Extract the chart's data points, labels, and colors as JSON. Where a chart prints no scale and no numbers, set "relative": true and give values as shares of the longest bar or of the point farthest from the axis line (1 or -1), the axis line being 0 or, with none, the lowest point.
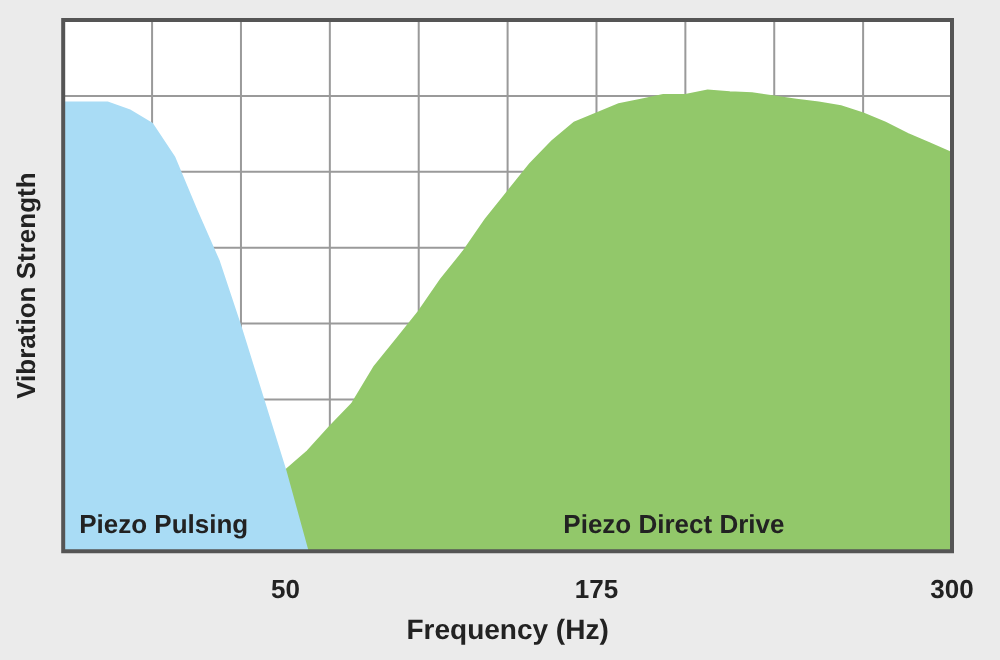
{
  "chart_data": {
    "type": "area",
    "xlabel": "Frequency (Hz)",
    "ylabel": "Vibration Strength",
    "relative": true,
    "grid": true,
    "categories": [
      null,
      null,
      null,
      null,
      null,
      null,
      null,
      null,
      null,
      null,
      "50",
      null,
      null,
      null,
      null,
      null,
      null,
      null,
      null,
      null,
      null,
      null,
      null,
      null,
      "175",
      null,
      null,
      null,
      null,
      null,
      null,
      null,
      null,
      null,
      null,
      null,
      null,
      null,
      null,
      null,
      "300"
    ],
    "series": [
      {
        "name": "Piezo Pulsing",
        "color": "#a9dcf5",
        "values": [
          0.974,
          0.974,
          0.974,
          0.957,
          0.928,
          0.855,
          0.74,
          0.63,
          0.485,
          0.33,
          0.175,
          0,
          null,
          null,
          null,
          null,
          null,
          null,
          null,
          null,
          null,
          null,
          null,
          null,
          null,
          null,
          null,
          null,
          null,
          null,
          null,
          null,
          null,
          null,
          null,
          null,
          null,
          null,
          null,
          null,
          null
        ]
      },
      {
        "name": "Piezo Direct Drive",
        "color": "#92c86a",
        "values": [
          null,
          null,
          null,
          null,
          null,
          null,
          null,
          null,
          null,
          null,
          0.175,
          0.217,
          0.27,
          0.32,
          0.4,
          0.46,
          0.52,
          0.59,
          0.65,
          0.72,
          0.78,
          0.84,
          0.89,
          0.93,
          0.95,
          0.97,
          0.98,
          0.99,
          0.99,
          1,
          0.996,
          0.994,
          0.987,
          0.98,
          0.974,
          0.966,
          0.95,
          0.93,
          0.906,
          0.885,
          0.864
        ]
      }
    ]
  }
}
